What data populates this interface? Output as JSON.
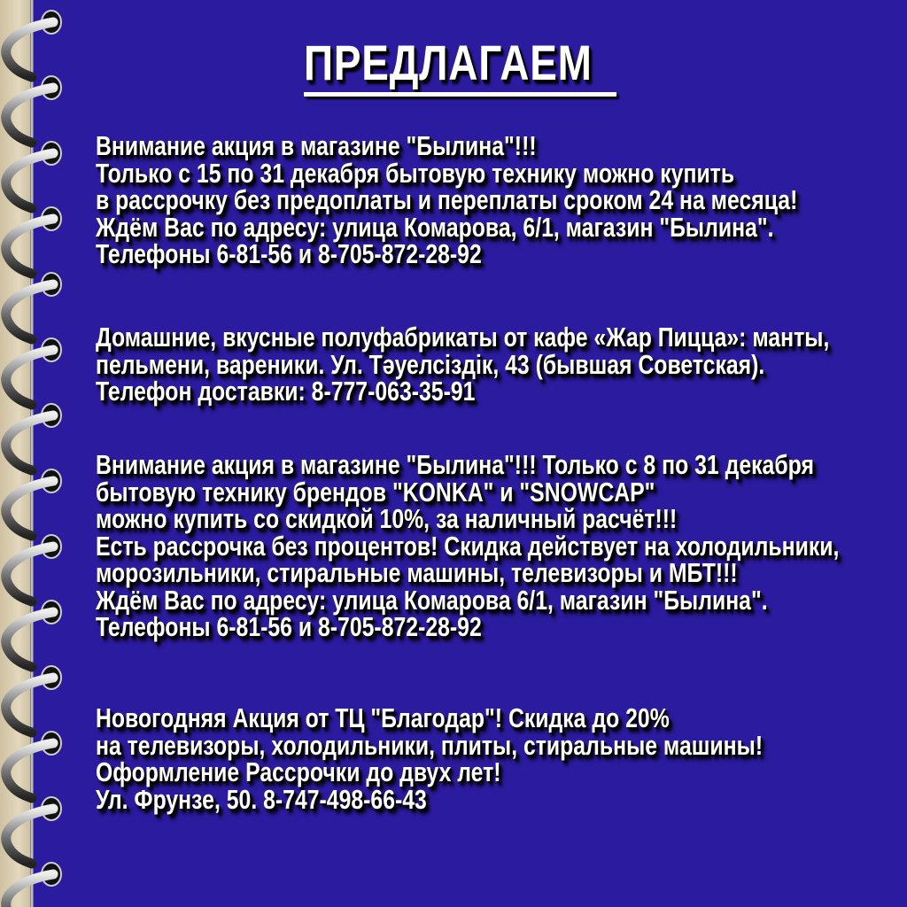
{
  "title": "ПРЕДЛАГАЕМ",
  "colors": {
    "background": "#2b1b9f",
    "text": "#ffffff",
    "shadow": "#000000"
  },
  "blocks": [
    {
      "lines": [
        "Внимание акция в магазине \"Былина\"!!!",
        "Только с 15 по 31 декабря бытовую технику можно купить",
        "в рассрочку без предоплаты и переплаты сроком 24 на месяца!",
        "Ждём Вас по адресу: улица Комарова, 6/1, магазин \"Былина\".",
        "Телефоны 6-81-56 и 8-705-872-28-92"
      ]
    },
    {
      "lines": [
        "Домашние, вкусные полуфабрикаты от кафе «Жар Пицца»: манты,",
        "пельмени, вареники. Ул. Тәуелсіздік, 43 (бывшая Советская).",
        "Телефон доставки: 8-777-063-35-91"
      ]
    },
    {
      "lines": [
        "Внимание акция в магазине \"Былина\"!!! Только с 8 по 31 декабря",
        "бытовую технику брендов \"KONKA\" и \"SNOWCAP\"",
        "можно купить со скидкой 10%, за наличный расчёт!!!",
        "Есть рассрочка без процентов! Скидка действует на холодильники,",
        "морозильники, стиральные машины, телевизоры и МБТ!!!",
        "Ждём Вас по адресу: улица Комарова 6/1, магазин \"Былина\".",
        "Телефоны 6-81-56 и 8-705-872-28-92"
      ]
    },
    {
      "lines": [
        "Новогодняя Акция от ТЦ \"Благодар\"! Скидка до 20%",
        "на телевизоры, холодильники, плиты, стиральные машины!",
        "Оформление Рассрочки до двух лет!",
        "Ул. Фрунзе, 50. 8-747-498-66-43"
      ]
    }
  ]
}
